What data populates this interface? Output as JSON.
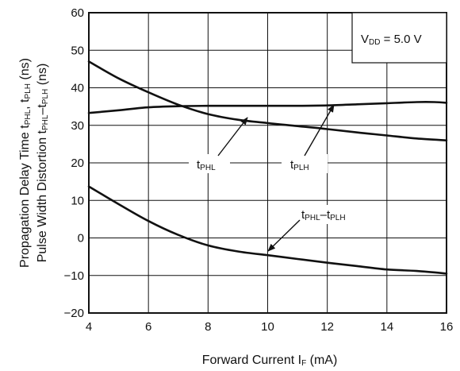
{
  "chart_data": {
    "type": "line",
    "xlabel_main": "Forward Current",
    "xlabel_var": "I",
    "xlabel_sub": "F",
    "xlabel_unit": "(mA)",
    "ylabel_line1": {
      "text": "Propagation Delay Time",
      "t1": "t",
      "s1": "PHL",
      "sep": ", ",
      "t2": "t",
      "s2": "PLH",
      "unit": "(ns)"
    },
    "ylabel_line2": {
      "text": "Pulse Width Distortion",
      "t1": "t",
      "s1": "PHL",
      "sep": "–",
      "t2": "t",
      "s2": "PLH",
      "unit": "(ns)"
    },
    "xlim": [
      4,
      16
    ],
    "ylim": [
      -20,
      60
    ],
    "xticks": [
      "4",
      "6",
      "8",
      "10",
      "12",
      "14",
      "16"
    ],
    "yticks": [
      "60",
      "50",
      "40",
      "30",
      "20",
      "10",
      "0",
      "−10",
      "−20"
    ],
    "grid": true,
    "condition": {
      "text": "V",
      "sub": "DD",
      "value": " = 5.0 V"
    },
    "series": [
      {
        "name": "tPHL",
        "label_t": "t",
        "label_sub": "PHL",
        "x": [
          4,
          5,
          6,
          7,
          8,
          9,
          10,
          11,
          12,
          13,
          14,
          15,
          16
        ],
        "y": [
          47,
          42.5,
          38.8,
          35.5,
          33,
          31.5,
          30.6,
          29.8,
          29,
          28.1,
          27.3,
          26.5,
          26
        ]
      },
      {
        "name": "tPLH",
        "label_t": "t",
        "label_sub": "PLH",
        "x": [
          4,
          5,
          6,
          7,
          8,
          9,
          10,
          11,
          12,
          13,
          14,
          15,
          15.6,
          16
        ],
        "y": [
          33.3,
          34,
          34.8,
          35.1,
          35.2,
          35.2,
          35.2,
          35.2,
          35.3,
          35.6,
          35.9,
          36.2,
          36.2,
          36
        ]
      },
      {
        "name": "tPHL–tPLH",
        "label_t1": "t",
        "label_sub1": "PHL",
        "label_sep": "–",
        "label_t2": "t",
        "label_sub2": "PLH",
        "x": [
          4,
          5,
          6,
          7,
          8,
          9,
          10,
          11,
          12,
          13,
          14,
          15,
          16
        ],
        "y": [
          13.7,
          9,
          4.5,
          0.8,
          -2,
          -3.6,
          -4.6,
          -5.6,
          -6.6,
          -7.5,
          -8.4,
          -8.8,
          -9.5
        ]
      }
    ]
  }
}
